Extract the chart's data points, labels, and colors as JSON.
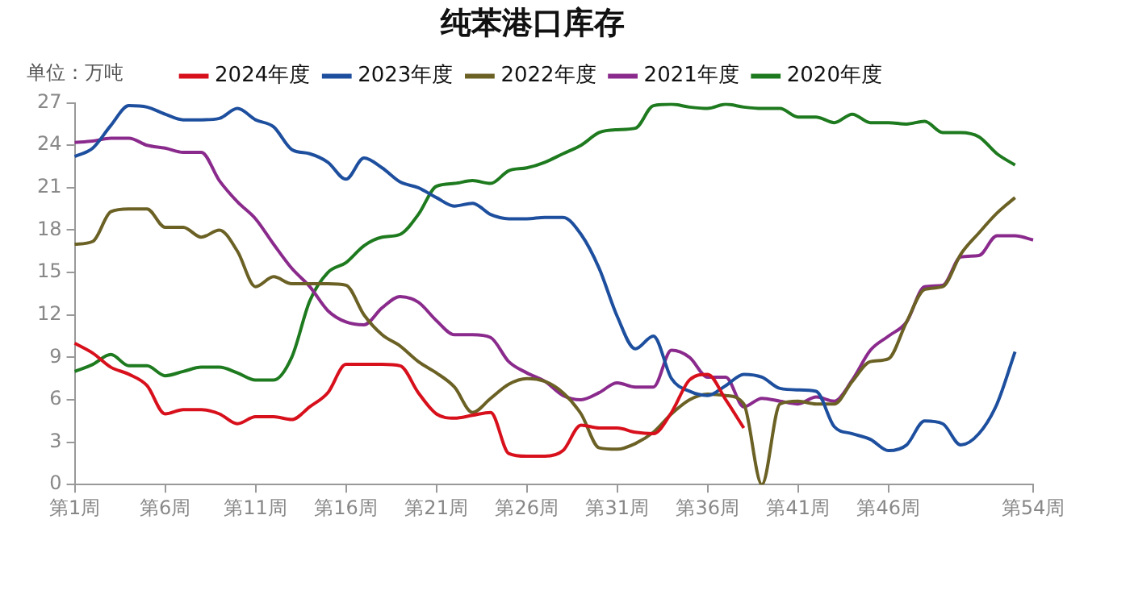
{
  "chart_data": {
    "type": "line",
    "title": "纯苯港口库存",
    "ylabel": "单位：万吨",
    "categories": [
      "第1周",
      null,
      null,
      null,
      null,
      "第6周",
      null,
      null,
      null,
      null,
      "第11周",
      null,
      null,
      null,
      null,
      "第16周",
      null,
      null,
      null,
      null,
      "第21周",
      null,
      null,
      null,
      null,
      "第26周",
      null,
      null,
      null,
      null,
      "第31周",
      null,
      null,
      null,
      null,
      "第36周",
      null,
      null,
      null,
      null,
      "第41周",
      null,
      null,
      null,
      null,
      "第46周",
      null,
      null,
      null,
      null,
      null,
      null,
      null,
      "第54周"
    ],
    "ylim": [
      0,
      27
    ],
    "yticks": [
      0,
      3,
      6,
      9,
      12,
      15,
      18,
      21,
      24,
      27
    ],
    "grid": false,
    "legend": "top",
    "marker": "none",
    "line_style": "solid",
    "series": [
      {
        "name": "2024年度",
        "color": "#d7101c",
        "values": [
          10,
          9.3,
          8.3,
          7.8,
          7.0,
          5.0,
          5.3,
          5.3,
          5.0,
          4.3,
          4.8,
          4.8,
          4.6,
          5.5,
          6.5,
          8.5,
          8.5,
          8.5,
          8.4,
          6.5,
          5.0,
          4.7,
          4.9,
          5.1,
          2.2,
          2.0,
          2.0,
          2.4,
          4.2,
          4.0,
          4.0,
          3.7,
          3.6,
          5.1,
          7.4,
          7.8,
          6.0,
          4.0,
          null,
          null,
          null,
          null,
          null,
          null,
          null,
          null,
          null,
          null,
          null,
          null,
          null,
          null,
          null,
          null
        ]
      },
      {
        "name": "2023年度",
        "color": "#1d4f9e",
        "values": [
          23.2,
          23.8,
          25.4,
          26.8,
          26.7,
          26.2,
          25.8,
          25.8,
          25.9,
          26.6,
          25.8,
          25.3,
          23.7,
          23.4,
          22.8,
          21.6,
          23.1,
          22.4,
          21.4,
          21.0,
          20.3,
          19.7,
          19.9,
          19.1,
          18.8,
          18.8,
          18.9,
          18.9,
          17.7,
          15.3,
          11.9,
          9.6,
          10.5,
          7.5,
          6.6,
          6.3,
          7.0,
          7.8,
          7.6,
          6.8,
          6.7,
          6.6,
          4.1,
          3.6,
          3.2,
          2.4,
          2.8,
          4.5,
          4.3,
          2.8,
          3.6,
          5.7,
          9.4,
          null
        ]
      },
      {
        "name": "2022年度",
        "color": "#6b6125",
        "values": [
          17.0,
          17.2,
          19.3,
          19.5,
          19.5,
          18.2,
          18.2,
          17.5,
          18.0,
          16.5,
          14.0,
          14.7,
          14.2,
          14.2,
          14.2,
          14.1,
          12.0,
          10.6,
          9.8,
          8.7,
          7.9,
          6.9,
          5.1,
          6.1,
          7.1,
          7.5,
          7.3,
          6.5,
          5.0,
          2.6,
          2.5,
          2.9,
          3.7,
          5.0,
          6.0,
          6.4,
          6.3,
          5.7,
          0,
          5.7,
          5.9,
          5.7,
          5.7,
          7.3,
          8.7,
          8.9,
          11.5,
          13.8,
          14.0,
          16.3,
          17.8,
          19.2,
          20.3,
          null
        ]
      },
      {
        "name": "2021年度",
        "color": "#8a2a8c",
        "values": [
          24.2,
          24.3,
          24.5,
          24.5,
          24.0,
          23.8,
          23.5,
          23.5,
          21.5,
          20.0,
          18.8,
          17.0,
          15.3,
          14.0,
          12.3,
          11.5,
          11.3,
          12.5,
          13.3,
          12.9,
          11.6,
          10.6,
          10.6,
          10.4,
          8.7,
          7.9,
          7.3,
          6.3,
          6.0,
          6.5,
          7.2,
          6.9,
          6.9,
          9.5,
          9.0,
          7.6,
          7.6,
          5.5,
          6.1,
          5.9,
          5.7,
          6.2,
          5.9,
          7.4,
          9.5,
          10.5,
          11.5,
          14.0,
          14.1,
          16.1,
          16.2,
          17.6,
          17.6,
          17.3
        ]
      },
      {
        "name": "2020年度",
        "color": "#1e7a1e",
        "values": [
          8.0,
          8.5,
          9.2,
          8.4,
          8.4,
          7.7,
          8.0,
          8.3,
          8.3,
          7.9,
          7.4,
          7.4,
          9.0,
          13.0,
          15.0,
          15.7,
          16.9,
          17.5,
          17.7,
          19.1,
          21.1,
          21.3,
          21.5,
          21.3,
          22.2,
          22.4,
          22.8,
          23.4,
          24.0,
          24.9,
          25.1,
          25.2,
          26.8,
          26.9,
          26.7,
          26.6,
          26.9,
          26.7,
          26.6,
          26.6,
          26.0,
          26.0,
          25.6,
          26.2,
          25.6,
          25.6,
          25.5,
          25.7,
          24.9,
          24.9,
          24.6,
          23.4,
          22.6,
          null
        ]
      }
    ]
  }
}
